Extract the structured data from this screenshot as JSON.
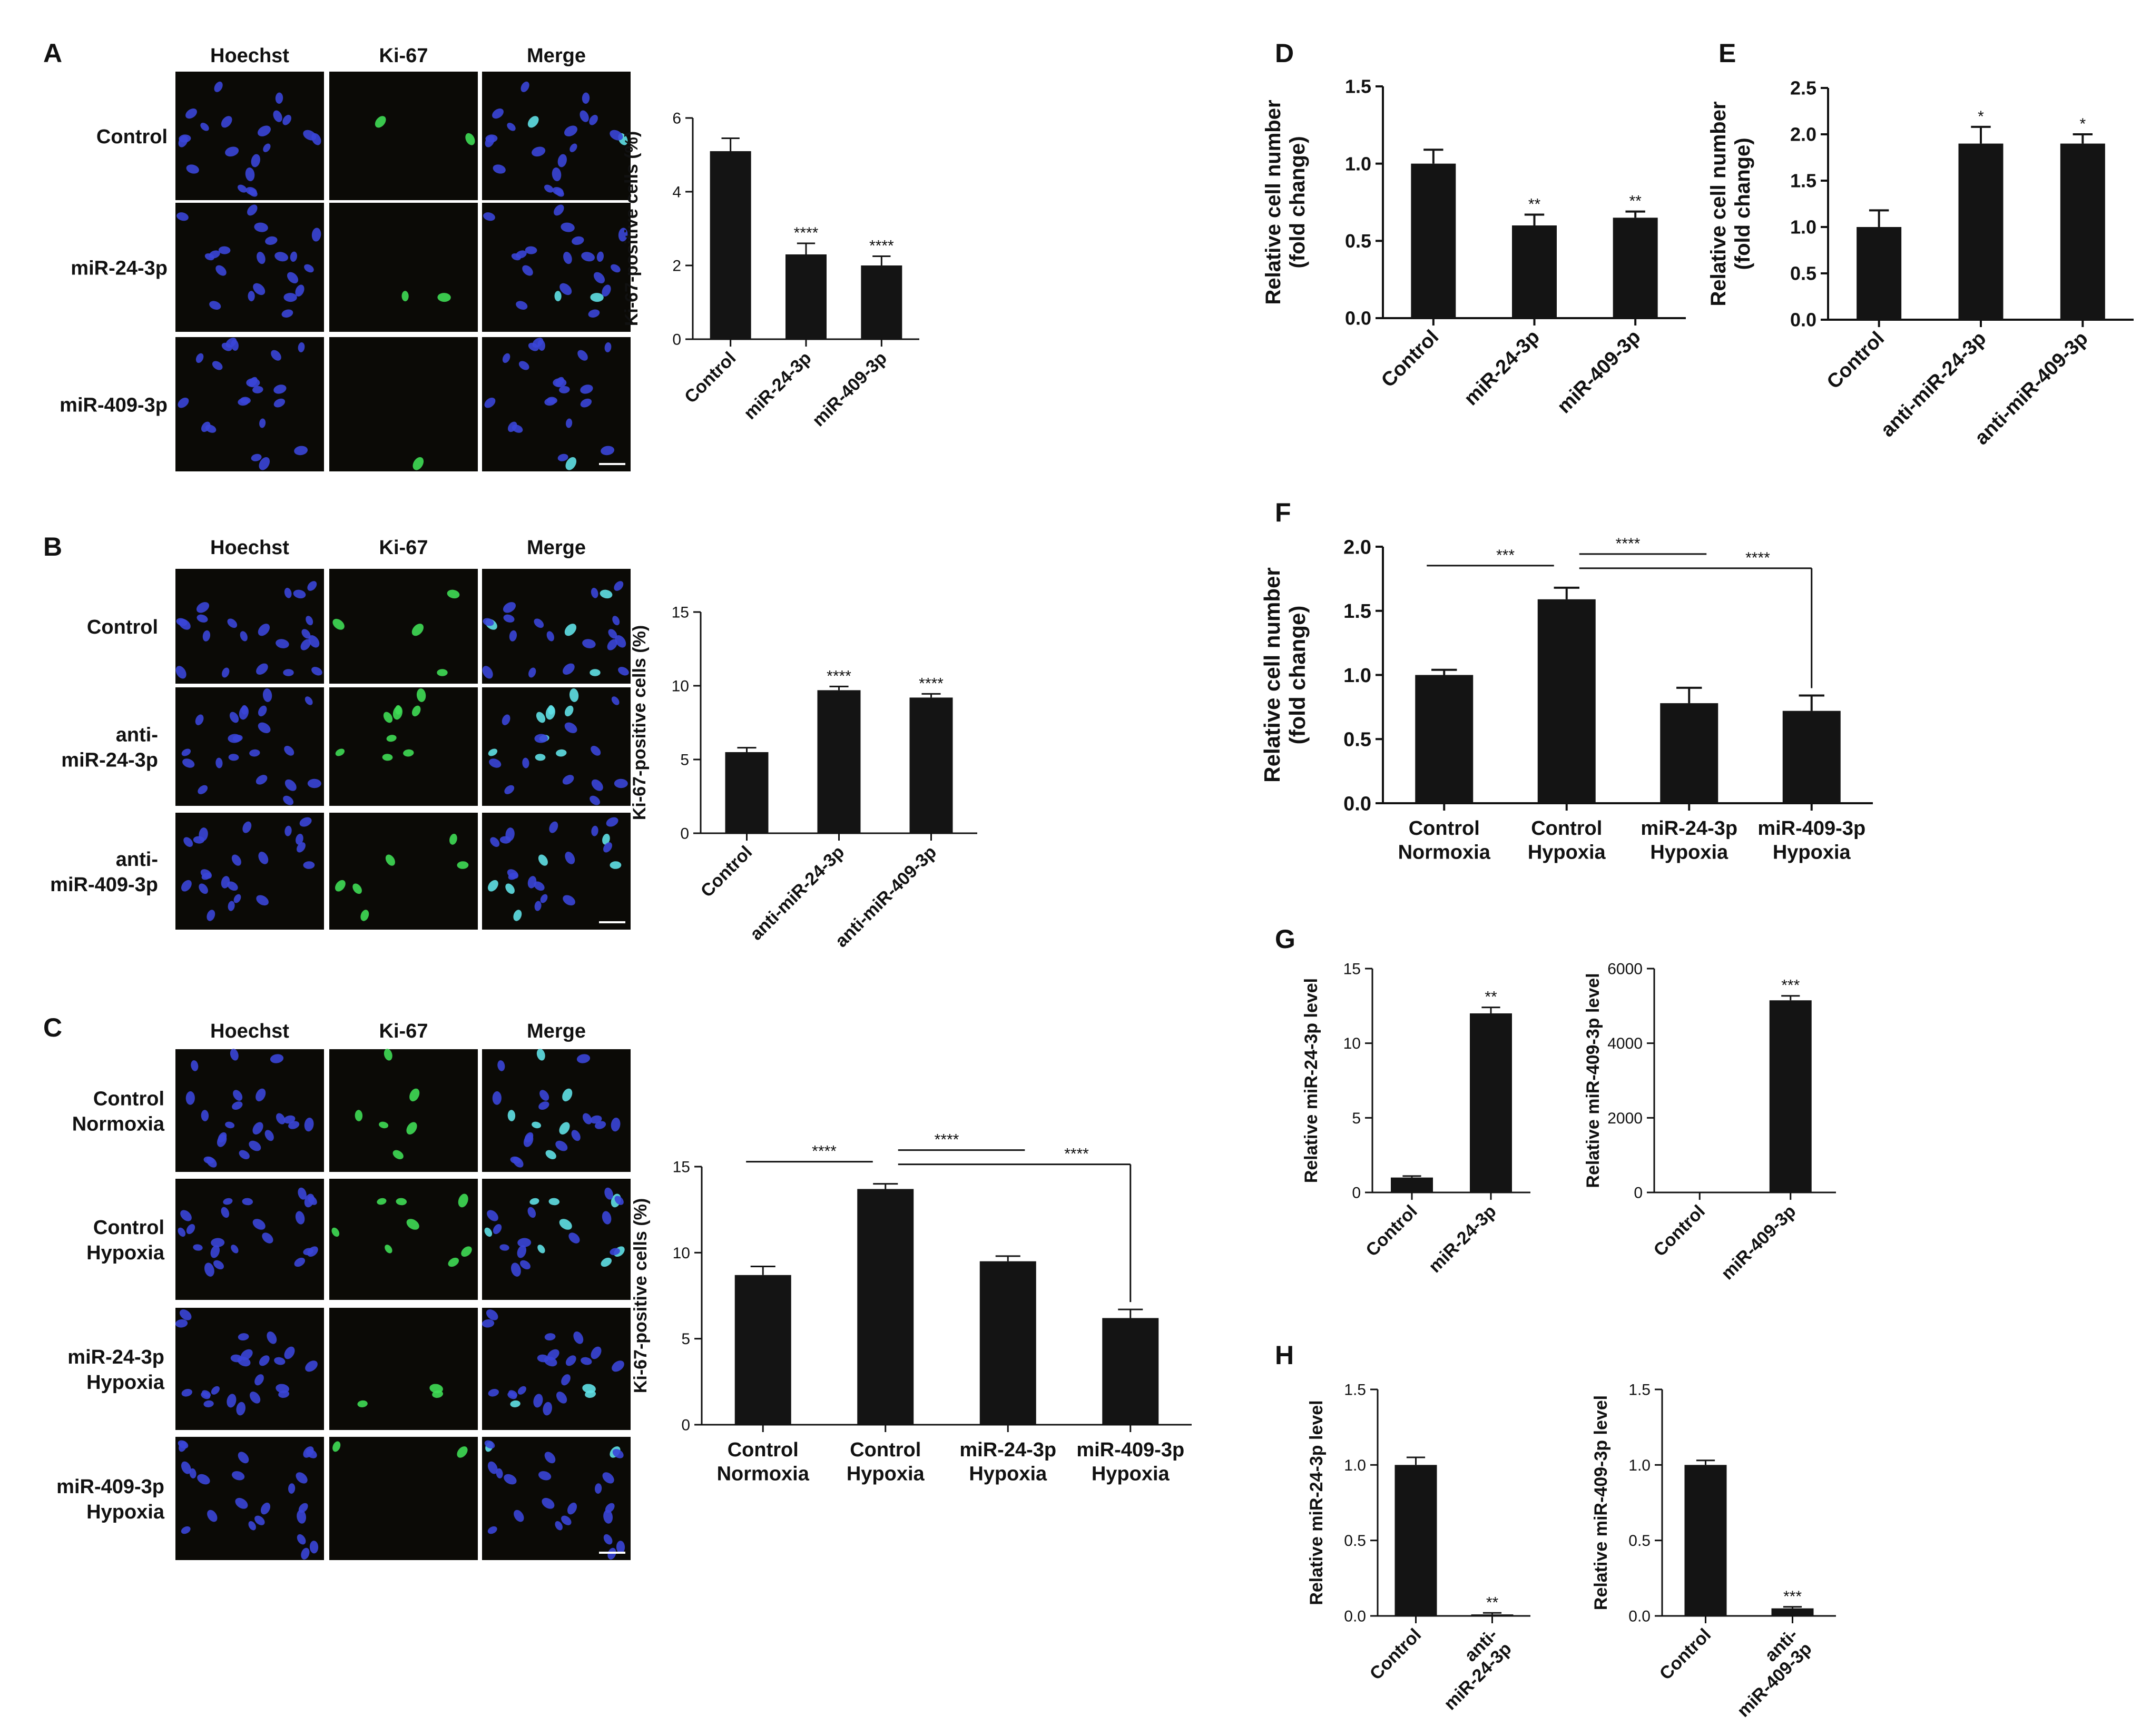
{
  "panel_letters": [
    "A",
    "B",
    "C",
    "D",
    "E",
    "F",
    "G",
    "H"
  ],
  "micrographs": {
    "channels": [
      "Hoechst",
      "Ki-67",
      "Merge"
    ],
    "A": {
      "rows": [
        "Control",
        "miR-24-3p",
        "miR-409-3p"
      ],
      "green_cells": [
        2,
        2,
        1
      ]
    },
    "B": {
      "rows": [
        "Control",
        "anti-\nmiR-24-3p",
        "anti-\nmiR-409-3p"
      ],
      "green_cells": [
        4,
        9,
        6
      ]
    },
    "C": {
      "rows": [
        "Control\nNormoxia",
        "Control\nHypoxia",
        "miR-24-3p\nHypoxia",
        "miR-409-3p\nHypoxia"
      ],
      "green_cells": [
        6,
        8,
        3,
        2
      ]
    },
    "colors": {
      "background": "#0b0a06",
      "hoechst": "#3a45d8",
      "ki67": "#3fdc55",
      "merge_overlap": "#5fe0e6"
    }
  },
  "chart_data": [
    {
      "panel": "A",
      "type": "bar",
      "categories": [
        "Control",
        "miR-24-3p",
        "miR-409-3p"
      ],
      "values": [
        5.1,
        2.3,
        2.0
      ],
      "errors": [
        0.35,
        0.3,
        0.25
      ],
      "significance": [
        "",
        "****",
        "****"
      ],
      "ylabel": "Ki-67-positive cells (%)",
      "ylim": [
        0,
        6
      ],
      "yticks": [
        0,
        2,
        4,
        6
      ]
    },
    {
      "panel": "B",
      "type": "bar",
      "categories": [
        "Control",
        "anti-miR-24-3p",
        "anti-miR-409-3p"
      ],
      "values": [
        5.5,
        9.7,
        9.2
      ],
      "errors": [
        0.3,
        0.25,
        0.25
      ],
      "significance": [
        "",
        "****",
        "****"
      ],
      "ylabel": "Ki-67-positive cells (%)",
      "ylim": [
        0,
        15
      ],
      "yticks": [
        0,
        5,
        10,
        15
      ]
    },
    {
      "panel": "C",
      "type": "bar",
      "categories": [
        "Control\nNormoxia",
        "Control\nHypoxia",
        "miR-24-3p\nHypoxia",
        "miR-409-3p\nHypoxia"
      ],
      "values": [
        8.7,
        13.7,
        9.5,
        6.2
      ],
      "errors": [
        0.5,
        0.3,
        0.3,
        0.5
      ],
      "comparisons": [
        {
          "from": 0,
          "to": 1,
          "label": "****"
        },
        {
          "from": 1,
          "to": 2,
          "label": "****"
        },
        {
          "from": 1,
          "to": 3,
          "label": "****"
        }
      ],
      "ylabel": "Ki-67-positive cells (%)",
      "ylim": [
        0,
        15
      ],
      "yticks": [
        0,
        5,
        10,
        15
      ]
    },
    {
      "panel": "D",
      "type": "bar",
      "categories": [
        "Control",
        "miR-24-3p",
        "miR-409-3p"
      ],
      "values": [
        1.0,
        0.6,
        0.65
      ],
      "errors": [
        0.09,
        0.07,
        0.04
      ],
      "significance": [
        "",
        "**",
        "**"
      ],
      "ylabel": "Relative cell number\n(fold change)",
      "ylim": [
        0,
        1.5
      ],
      "yticks": [
        "0.0",
        "0.5",
        "1.0",
        "1.5"
      ]
    },
    {
      "panel": "E",
      "type": "bar",
      "categories": [
        "Control",
        "anti-miR-24-3p",
        "anti-miR-409-3p"
      ],
      "values": [
        1.0,
        1.9,
        1.9
      ],
      "errors": [
        0.18,
        0.18,
        0.1
      ],
      "significance": [
        "",
        "*",
        "*"
      ],
      "ylabel": "Relative cell number\n(fold change)",
      "ylim": [
        0,
        2.5
      ],
      "yticks": [
        "0.0",
        "0.5",
        "1.0",
        "1.5",
        "2.0",
        "2.5"
      ]
    },
    {
      "panel": "F",
      "type": "bar",
      "categories": [
        "Control\nNormoxia",
        "Control\nHypoxia",
        "miR-24-3p\nHypoxia",
        "miR-409-3p\nHypoxia"
      ],
      "values": [
        1.0,
        1.59,
        0.78,
        0.72
      ],
      "errors": [
        0.04,
        0.09,
        0.12,
        0.12
      ],
      "comparisons": [
        {
          "from": 0,
          "to": 1,
          "label": "***"
        },
        {
          "from": 1,
          "to": 2,
          "label": "****"
        },
        {
          "from": 1,
          "to": 3,
          "label": "****"
        }
      ],
      "ylabel": "Relative cell number\n(fold change)",
      "ylim": [
        0,
        2.0
      ],
      "yticks": [
        "0.0",
        "0.5",
        "1.0",
        "1.5",
        "2.0"
      ]
    },
    {
      "panel": "G",
      "type": "bar",
      "categories": [
        "Control",
        "miR-24-3p"
      ],
      "values": [
        1.0,
        12.0
      ],
      "errors": [
        0.1,
        0.4
      ],
      "significance": [
        "",
        "**"
      ],
      "ylabel": "Relative miR-24-3p level",
      "ylim": [
        0,
        15
      ],
      "yticks": [
        0,
        5,
        10,
        15
      ]
    },
    {
      "panel": "G2",
      "type": "bar",
      "categories": [
        "Control",
        "miR-409-3p"
      ],
      "values": [
        1,
        5150
      ],
      "errors": [
        0,
        120
      ],
      "significance": [
        "",
        "***"
      ],
      "ylabel": "Relative miR-409-3p level",
      "ylim": [
        0,
        6000
      ],
      "yticks": [
        0,
        2000,
        4000,
        6000
      ]
    },
    {
      "panel": "H",
      "type": "bar",
      "categories": [
        "Control",
        "anti-\nmiR-24-3p"
      ],
      "values": [
        1.0,
        0.01
      ],
      "errors": [
        0.05,
        0.01
      ],
      "significance": [
        "",
        "**"
      ],
      "ylabel": "Relative miR-24-3p level",
      "ylim": [
        0,
        1.5
      ],
      "yticks": [
        "0.0",
        "0.5",
        "1.0",
        "1.5"
      ]
    },
    {
      "panel": "H2",
      "type": "bar",
      "categories": [
        "Control",
        "anti-\nmiR-409-3p"
      ],
      "values": [
        1.0,
        0.05
      ],
      "errors": [
        0.03,
        0.01
      ],
      "significance": [
        "",
        "***"
      ],
      "ylabel": "Relative miR-409-3p level",
      "ylim": [
        0,
        1.5
      ],
      "yticks": [
        "0.0",
        "0.5",
        "1.0",
        "1.5"
      ]
    }
  ]
}
